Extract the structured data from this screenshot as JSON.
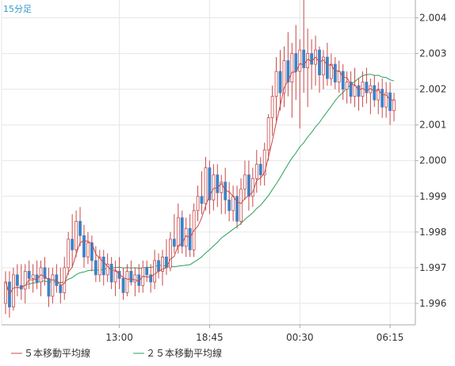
{
  "timeframe_label": "15分足",
  "colors": {
    "background": "#ffffff",
    "grid": "#e6e6e6",
    "frame": "#aaaaaa",
    "up_body": "#ffffff",
    "up_border": "#c84a4a",
    "down_body": "#3c82c8",
    "wick": "#c84a4a",
    "ma5": "#c84a4a",
    "ma25": "#2aa05a",
    "timeframe_text": "#3399cc"
  },
  "chart_data": {
    "type": "candlestick",
    "x_tick_labels": [
      "13:00",
      "18:45",
      "00:30",
      "06:15"
    ],
    "x_tick_candle_index": [
      29,
      52,
      75,
      98
    ],
    "y_ticks": [
      1.996,
      1.997,
      1.998,
      1.999,
      2.0,
      2.001,
      2.002,
      2.003,
      2.004
    ],
    "ylim": [
      1.9954,
      2.0045
    ],
    "grid": true,
    "legend_position": "bottom-left",
    "legend": [
      {
        "name": "５本移動平均線",
        "color": "#c84a4a"
      },
      {
        "name": "２５本移動平均線",
        "color": "#2aa05a"
      }
    ],
    "candles": [
      {
        "o": 1.996,
        "h": 1.9969,
        "l": 1.9957,
        "c": 1.9966
      },
      {
        "o": 1.9966,
        "h": 1.9969,
        "l": 1.9956,
        "c": 1.9959
      },
      {
        "o": 1.9959,
        "h": 1.997,
        "l": 1.9958,
        "c": 1.9968
      },
      {
        "o": 1.9968,
        "h": 1.9971,
        "l": 1.9962,
        "c": 1.9965
      },
      {
        "o": 1.9965,
        "h": 1.9971,
        "l": 1.9961,
        "c": 1.9964
      },
      {
        "o": 1.9964,
        "h": 1.9971,
        "l": 1.996,
        "c": 1.9969
      },
      {
        "o": 1.9969,
        "h": 1.9972,
        "l": 1.9964,
        "c": 1.9967
      },
      {
        "o": 1.9967,
        "h": 1.9971,
        "l": 1.9963,
        "c": 1.9968
      },
      {
        "o": 1.9968,
        "h": 1.9972,
        "l": 1.9964,
        "c": 1.9966
      },
      {
        "o": 1.9966,
        "h": 1.9972,
        "l": 1.9962,
        "c": 1.997
      },
      {
        "o": 1.997,
        "h": 1.9973,
        "l": 1.9965,
        "c": 1.9967
      },
      {
        "o": 1.9967,
        "h": 1.997,
        "l": 1.9959,
        "c": 1.9962
      },
      {
        "o": 1.9962,
        "h": 1.997,
        "l": 1.996,
        "c": 1.9968
      },
      {
        "o": 1.9968,
        "h": 1.9971,
        "l": 1.9963,
        "c": 1.9965
      },
      {
        "o": 1.9965,
        "h": 1.997,
        "l": 1.996,
        "c": 1.9963
      },
      {
        "o": 1.9963,
        "h": 1.9973,
        "l": 1.9961,
        "c": 1.997
      },
      {
        "o": 1.997,
        "h": 1.998,
        "l": 1.9968,
        "c": 1.9978
      },
      {
        "o": 1.9978,
        "h": 1.9985,
        "l": 1.997,
        "c": 1.9975
      },
      {
        "o": 1.9975,
        "h": 1.9986,
        "l": 1.9973,
        "c": 1.9983
      },
      {
        "o": 1.9983,
        "h": 1.9987,
        "l": 1.9976,
        "c": 1.9979
      },
      {
        "o": 1.9979,
        "h": 1.9982,
        "l": 1.997,
        "c": 1.9973
      },
      {
        "o": 1.9973,
        "h": 1.998,
        "l": 1.9971,
        "c": 1.9977
      },
      {
        "o": 1.9977,
        "h": 1.9979,
        "l": 1.9969,
        "c": 1.9972
      },
      {
        "o": 1.9972,
        "h": 1.9976,
        "l": 1.9966,
        "c": 1.9968
      },
      {
        "o": 1.9968,
        "h": 1.9975,
        "l": 1.9966,
        "c": 1.9973
      },
      {
        "o": 1.9973,
        "h": 1.9975,
        "l": 1.9965,
        "c": 1.9968
      },
      {
        "o": 1.9968,
        "h": 1.9974,
        "l": 1.9966,
        "c": 1.9971
      },
      {
        "o": 1.9971,
        "h": 1.9973,
        "l": 1.9964,
        "c": 1.9966
      },
      {
        "o": 1.9966,
        "h": 1.9972,
        "l": 1.9962,
        "c": 1.9969
      },
      {
        "o": 1.9969,
        "h": 1.9973,
        "l": 1.9964,
        "c": 1.9967
      },
      {
        "o": 1.9967,
        "h": 1.997,
        "l": 1.9961,
        "c": 1.9963
      },
      {
        "o": 1.9963,
        "h": 1.9971,
        "l": 1.9962,
        "c": 1.9969
      },
      {
        "o": 1.9969,
        "h": 1.9972,
        "l": 1.9965,
        "c": 1.9966
      },
      {
        "o": 1.9966,
        "h": 1.997,
        "l": 1.9962,
        "c": 1.9968
      },
      {
        "o": 1.9968,
        "h": 1.9971,
        "l": 1.9963,
        "c": 1.9965
      },
      {
        "o": 1.9965,
        "h": 1.9972,
        "l": 1.9963,
        "c": 1.997
      },
      {
        "o": 1.997,
        "h": 1.9972,
        "l": 1.9966,
        "c": 1.9968
      },
      {
        "o": 1.9968,
        "h": 1.9971,
        "l": 1.9963,
        "c": 1.9966
      },
      {
        "o": 1.9966,
        "h": 1.9975,
        "l": 1.9964,
        "c": 1.9972
      },
      {
        "o": 1.9972,
        "h": 1.9974,
        "l": 1.9967,
        "c": 1.9969
      },
      {
        "o": 1.9969,
        "h": 1.9975,
        "l": 1.9965,
        "c": 1.9973
      },
      {
        "o": 1.9973,
        "h": 1.9978,
        "l": 1.9968,
        "c": 1.997
      },
      {
        "o": 1.997,
        "h": 1.998,
        "l": 1.9969,
        "c": 1.9978
      },
      {
        "o": 1.9978,
        "h": 1.9985,
        "l": 1.9974,
        "c": 1.9976
      },
      {
        "o": 1.9976,
        "h": 1.9988,
        "l": 1.9974,
        "c": 1.9984
      },
      {
        "o": 1.9984,
        "h": 1.9986,
        "l": 1.9974,
        "c": 1.9976
      },
      {
        "o": 1.9976,
        "h": 1.9984,
        "l": 1.9973,
        "c": 1.9981
      },
      {
        "o": 1.9981,
        "h": 1.9985,
        "l": 1.9973,
        "c": 1.9975
      },
      {
        "o": 1.9975,
        "h": 1.9988,
        "l": 1.9973,
        "c": 1.9986
      },
      {
        "o": 1.9986,
        "h": 1.9993,
        "l": 1.9983,
        "c": 1.999
      },
      {
        "o": 1.999,
        "h": 1.9997,
        "l": 1.9985,
        "c": 1.9988
      },
      {
        "o": 1.9988,
        "h": 2.0001,
        "l": 1.9986,
        "c": 1.9998
      },
      {
        "o": 1.9998,
        "h": 2.0,
        "l": 1.9985,
        "c": 1.9989
      },
      {
        "o": 1.9989,
        "h": 1.9999,
        "l": 1.9986,
        "c": 1.9996
      },
      {
        "o": 1.9996,
        "h": 1.9999,
        "l": 1.9987,
        "c": 1.9991
      },
      {
        "o": 1.9991,
        "h": 1.9996,
        "l": 1.9985,
        "c": 1.9994
      },
      {
        "o": 1.9994,
        "h": 1.9998,
        "l": 1.9985,
        "c": 1.9989
      },
      {
        "o": 1.9989,
        "h": 1.9994,
        "l": 1.9983,
        "c": 1.9986
      },
      {
        "o": 1.9986,
        "h": 1.9993,
        "l": 1.9983,
        "c": 1.999
      },
      {
        "o": 1.999,
        "h": 1.9993,
        "l": 1.9981,
        "c": 1.9983
      },
      {
        "o": 1.9983,
        "h": 1.9995,
        "l": 1.9982,
        "c": 1.9992
      },
      {
        "o": 1.9992,
        "h": 2.0,
        "l": 1.9989,
        "c": 1.9996
      },
      {
        "o": 1.9996,
        "h": 2.0,
        "l": 1.9986,
        "c": 1.999
      },
      {
        "o": 1.999,
        "h": 1.9998,
        "l": 1.9987,
        "c": 1.9995
      },
      {
        "o": 1.9995,
        "h": 2.0003,
        "l": 1.9991,
        "c": 1.9999
      },
      {
        "o": 1.9999,
        "h": 2.0001,
        "l": 1.9993,
        "c": 1.9996
      },
      {
        "o": 1.9996,
        "h": 2.0005,
        "l": 1.9993,
        "c": 2.0003
      },
      {
        "o": 2.0003,
        "h": 2.0013,
        "l": 2.0,
        "c": 2.0012
      },
      {
        "o": 2.0012,
        "h": 2.0021,
        "l": 2.0007,
        "c": 2.0018
      },
      {
        "o": 2.0018,
        "h": 2.0029,
        "l": 2.0011,
        "c": 2.0025
      },
      {
        "o": 2.0025,
        "h": 2.0031,
        "l": 2.0014,
        "c": 2.0019
      },
      {
        "o": 2.0019,
        "h": 2.0032,
        "l": 2.0015,
        "c": 2.0028
      },
      {
        "o": 2.0028,
        "h": 2.0036,
        "l": 2.0018,
        "c": 2.0022
      },
      {
        "o": 2.0022,
        "h": 2.0033,
        "l": 2.0012,
        "c": 2.003
      },
      {
        "o": 2.003,
        "h": 2.0038,
        "l": 2.0017,
        "c": 2.0025
      },
      {
        "o": 2.0025,
        "h": 2.0034,
        "l": 2.0009,
        "c": 2.0031
      },
      {
        "o": 2.0031,
        "h": 2.0045,
        "l": 2.0019,
        "c": 2.0026
      },
      {
        "o": 2.0026,
        "h": 2.0037,
        "l": 2.0015,
        "c": 2.003
      },
      {
        "o": 2.003,
        "h": 2.0034,
        "l": 2.002,
        "c": 2.0027
      },
      {
        "o": 2.0027,
        "h": 2.0035,
        "l": 2.0021,
        "c": 2.0031
      },
      {
        "o": 2.0031,
        "h": 2.0032,
        "l": 2.0019,
        "c": 2.0024
      },
      {
        "o": 2.0024,
        "h": 2.0031,
        "l": 2.002,
        "c": 2.0029
      },
      {
        "o": 2.0029,
        "h": 2.0033,
        "l": 2.0021,
        "c": 2.0023
      },
      {
        "o": 2.0023,
        "h": 2.003,
        "l": 2.0021,
        "c": 2.0027
      },
      {
        "o": 2.0027,
        "h": 2.0029,
        "l": 2.002,
        "c": 2.0022
      },
      {
        "o": 2.0022,
        "h": 2.0028,
        "l": 2.0019,
        "c": 2.0025
      },
      {
        "o": 2.0025,
        "h": 2.0027,
        "l": 2.0017,
        "c": 2.002
      },
      {
        "o": 2.002,
        "h": 2.0025,
        "l": 2.0016,
        "c": 2.0022
      },
      {
        "o": 2.0022,
        "h": 2.0025,
        "l": 2.0016,
        "c": 2.0018
      },
      {
        "o": 2.0018,
        "h": 2.0026,
        "l": 2.0015,
        "c": 2.0021
      },
      {
        "o": 2.0021,
        "h": 2.0023,
        "l": 2.0014,
        "c": 2.0018
      },
      {
        "o": 2.0018,
        "h": 2.0025,
        "l": 2.0015,
        "c": 2.0022
      },
      {
        "o": 2.0022,
        "h": 2.0026,
        "l": 2.0016,
        "c": 2.0019
      },
      {
        "o": 2.0019,
        "h": 2.0023,
        "l": 2.0013,
        "c": 2.0021
      },
      {
        "o": 2.0021,
        "h": 2.0024,
        "l": 2.0015,
        "c": 2.0017
      },
      {
        "o": 2.0017,
        "h": 2.0022,
        "l": 2.0013,
        "c": 2.002
      },
      {
        "o": 2.002,
        "h": 2.0023,
        "l": 2.0012,
        "c": 2.0015
      },
      {
        "o": 2.0015,
        "h": 2.0022,
        "l": 2.0012,
        "c": 2.0019
      },
      {
        "o": 2.0019,
        "h": 2.0022,
        "l": 2.001,
        "c": 2.0014
      },
      {
        "o": 2.0014,
        "h": 2.0019,
        "l": 2.0011,
        "c": 2.0017
      }
    ]
  }
}
